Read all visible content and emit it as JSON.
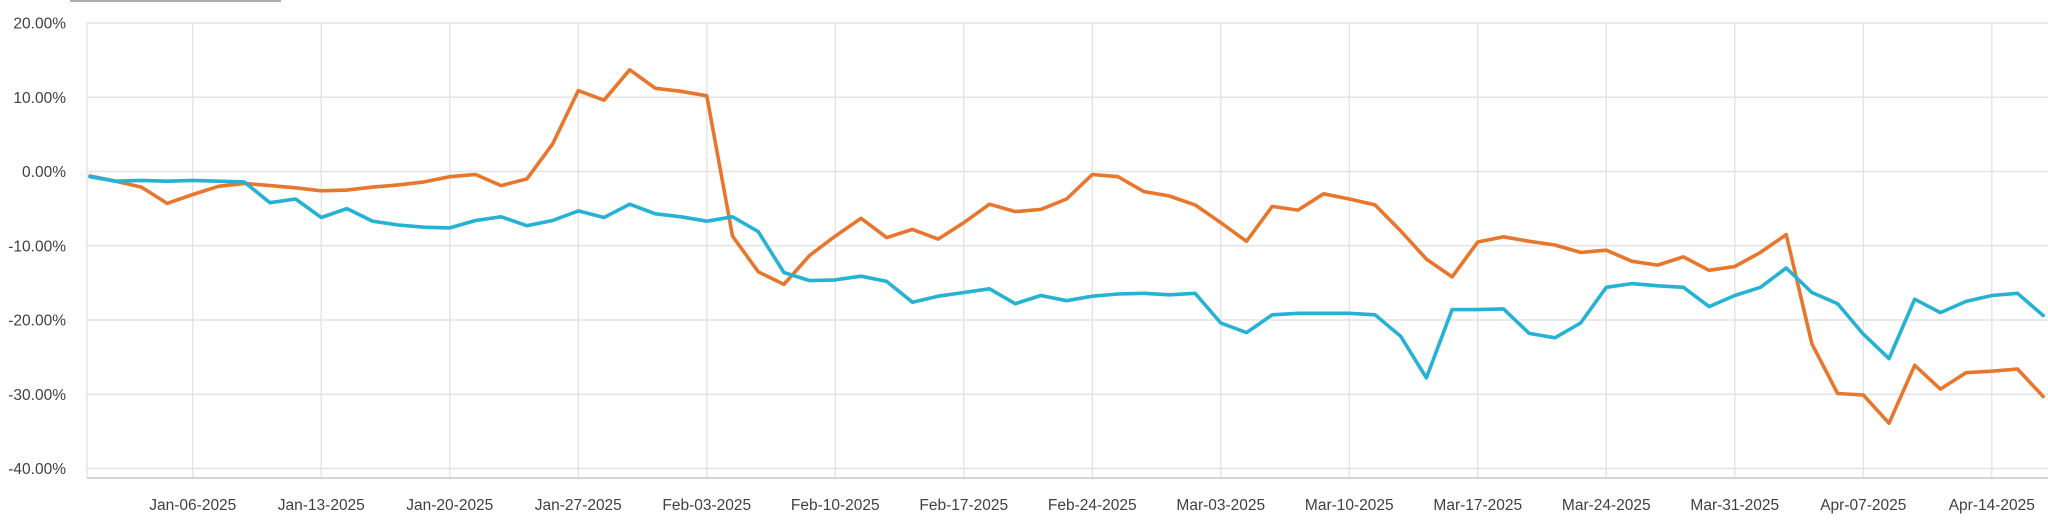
{
  "page": {
    "background_color": "#ffffff",
    "cropped_element_edge_color": "#aeaeae"
  },
  "chart_data": {
    "type": "line",
    "title": "",
    "xlabel": "",
    "ylabel": "",
    "legend": "none",
    "grid": true,
    "ylim": [
      -41.3,
      20
    ],
    "axis_label_color": "#404040",
    "gridline_color": "#e4e4e4",
    "axis_line_color": "#c2c9d0",
    "y_ticks": [
      {
        "label": "20.00%",
        "value": 20
      },
      {
        "label": "10.00%",
        "value": 10
      },
      {
        "label": "0.00%",
        "value": 0
      },
      {
        "label": "-10.00%",
        "value": -10
      },
      {
        "label": "-20.00%",
        "value": -20
      },
      {
        "label": "-30.00%",
        "value": -30
      },
      {
        "label": "-40.00%",
        "value": -40
      }
    ],
    "x_ticks": [
      {
        "label": "Jan-06-2025",
        "index": 4
      },
      {
        "label": "Jan-13-2025",
        "index": 9
      },
      {
        "label": "Jan-20-2025",
        "index": 14
      },
      {
        "label": "Jan-27-2025",
        "index": 19
      },
      {
        "label": "Feb-03-2025",
        "index": 24
      },
      {
        "label": "Feb-10-2025",
        "index": 29
      },
      {
        "label": "Feb-17-2025",
        "index": 34
      },
      {
        "label": "Feb-24-2025",
        "index": 39
      },
      {
        "label": "Mar-03-2025",
        "index": 44
      },
      {
        "label": "Mar-10-2025",
        "index": 49
      },
      {
        "label": "Mar-17-2025",
        "index": 54
      },
      {
        "label": "Mar-24-2025",
        "index": 59
      },
      {
        "label": "Mar-31-2025",
        "index": 64
      },
      {
        "label": "Apr-07-2025",
        "index": 69
      },
      {
        "label": "Apr-14-2025",
        "index": 74
      }
    ],
    "categories": [
      "Dec-30-2024",
      "Dec-31-2024",
      "Jan-02-2025",
      "Jan-03-2025",
      "Jan-06-2025",
      "Jan-07-2025",
      "Jan-08-2025",
      "Jan-09-2025",
      "Jan-10-2025",
      "Jan-13-2025",
      "Jan-14-2025",
      "Jan-15-2025",
      "Jan-16-2025",
      "Jan-17-2025",
      "Jan-20-2025",
      "Jan-21-2025",
      "Jan-22-2025",
      "Jan-23-2025",
      "Jan-24-2025",
      "Jan-27-2025",
      "Jan-28-2025",
      "Jan-29-2025",
      "Jan-30-2025",
      "Jan-31-2025",
      "Feb-03-2025",
      "Feb-04-2025",
      "Feb-05-2025",
      "Feb-06-2025",
      "Feb-07-2025",
      "Feb-10-2025",
      "Feb-11-2025",
      "Feb-12-2025",
      "Feb-13-2025",
      "Feb-14-2025",
      "Feb-17-2025",
      "Feb-18-2025",
      "Feb-19-2025",
      "Feb-20-2025",
      "Feb-21-2025",
      "Feb-24-2025",
      "Feb-25-2025",
      "Feb-26-2025",
      "Feb-27-2025",
      "Feb-28-2025",
      "Mar-03-2025",
      "Mar-04-2025",
      "Mar-05-2025",
      "Mar-06-2025",
      "Mar-07-2025",
      "Mar-10-2025",
      "Mar-11-2025",
      "Mar-12-2025",
      "Mar-13-2025",
      "Mar-14-2025",
      "Mar-17-2025",
      "Mar-18-2025",
      "Mar-19-2025",
      "Mar-20-2025",
      "Mar-21-2025",
      "Mar-24-2025",
      "Mar-25-2025",
      "Mar-26-2025",
      "Mar-27-2025",
      "Mar-28-2025",
      "Mar-31-2025",
      "Apr-01-2025",
      "Apr-02-2025",
      "Apr-03-2025",
      "Apr-04-2025",
      "Apr-07-2025",
      "Apr-08-2025",
      "Apr-09-2025",
      "Apr-10-2025",
      "Apr-11-2025",
      "Apr-14-2025",
      "Apr-15-2025",
      "Apr-16-2025"
    ],
    "series": [
      {
        "id": "series-orange",
        "color": "#e8772d",
        "values": [
          -0.6,
          -1.3,
          -2.1,
          -4.3,
          -3.1,
          -2.0,
          -1.6,
          -1.9,
          -2.2,
          -2.6,
          -2.5,
          -2.1,
          -1.8,
          -1.4,
          -0.7,
          -0.4,
          -1.9,
          -1.0,
          3.7,
          10.9,
          9.6,
          13.7,
          11.2,
          10.8,
          10.2,
          -8.7,
          -13.5,
          -15.2,
          -11.3,
          -8.7,
          -6.3,
          -8.9,
          -7.8,
          -9.1,
          -6.9,
          -4.4,
          -5.4,
          -5.1,
          -3.7,
          -0.4,
          -0.7,
          -2.7,
          -3.3,
          -4.5,
          -6.9,
          -9.4,
          -4.7,
          -5.2,
          -3.0,
          -3.7,
          -4.5,
          -8.0,
          -11.8,
          -14.2,
          -9.5,
          -8.8,
          -9.4,
          -9.9,
          -10.9,
          -10.6,
          -12.1,
          -12.6,
          -11.5,
          -13.3,
          -12.8,
          -10.9,
          -8.5,
          -23.2,
          -29.9,
          -30.1,
          -33.9,
          -26.1,
          -29.3,
          -27.1,
          -26.9,
          -26.6,
          -30.3
        ]
      },
      {
        "id": "series-cyan",
        "color": "#26b2d5",
        "values": [
          -0.7,
          -1.3,
          -1.2,
          -1.3,
          -1.2,
          -1.3,
          -1.4,
          -4.2,
          -3.7,
          -6.2,
          -5.0,
          -6.7,
          -7.2,
          -7.5,
          -7.6,
          -6.6,
          -6.1,
          -7.3,
          -6.6,
          -5.3,
          -6.2,
          -4.4,
          -5.7,
          -6.1,
          -6.7,
          -6.1,
          -8.1,
          -13.6,
          -14.7,
          -14.6,
          -14.1,
          -14.8,
          -17.6,
          -16.8,
          -16.3,
          -15.8,
          -17.8,
          -16.7,
          -17.4,
          -16.8,
          -16.5,
          -16.4,
          -16.6,
          -16.4,
          -20.4,
          -21.7,
          -19.3,
          -19.1,
          -19.1,
          -19.1,
          -19.3,
          -22.2,
          -27.8,
          -18.6,
          -18.6,
          -18.5,
          -21.8,
          -22.4,
          -20.4,
          -15.6,
          -15.1,
          -15.4,
          -15.6,
          -18.2,
          -16.7,
          -15.6,
          -13.0,
          -16.3,
          -17.8,
          -21.9,
          -25.2,
          -17.2,
          -19.0,
          -17.5,
          -16.7,
          -16.4,
          -19.4
        ]
      }
    ]
  }
}
